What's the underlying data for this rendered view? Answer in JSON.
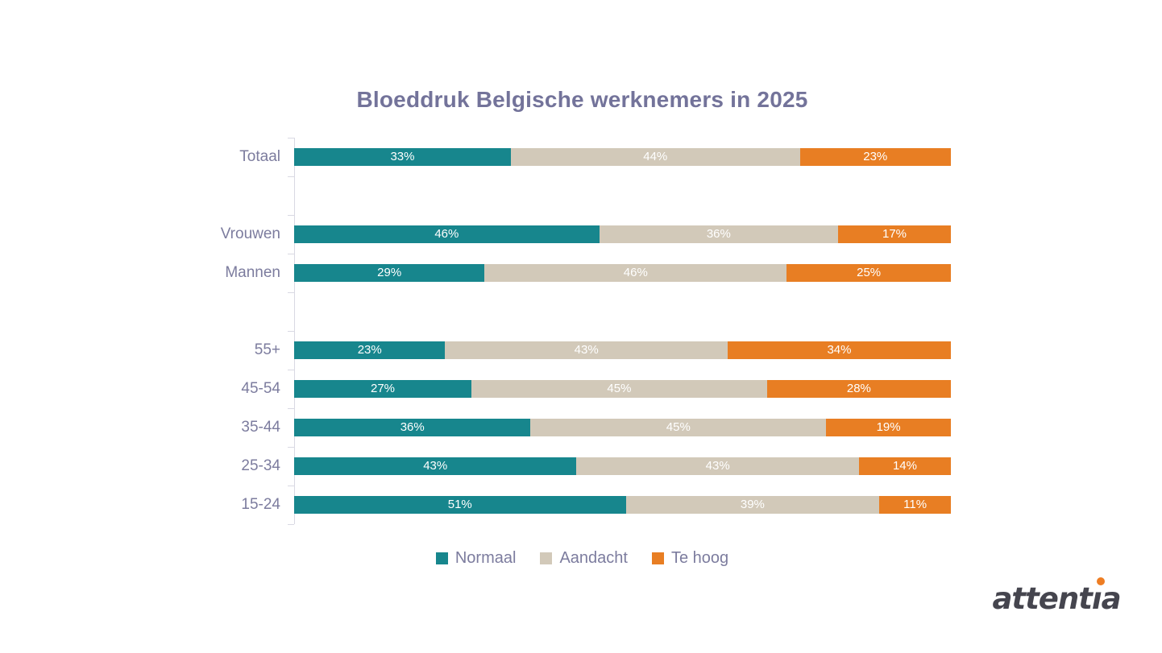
{
  "title": "Bloeddruk Belgische werknemers in 2025",
  "chart_data": {
    "type": "bar",
    "orientation": "horizontal",
    "stacked": true,
    "percent_stacked": true,
    "title": "Bloeddruk Belgische werknemers in 2025",
    "categories": [
      "Totaal",
      "Vrouwen",
      "Mannen",
      "55+",
      "45-54",
      "35-44",
      "25-34",
      "15-24"
    ],
    "groups": [
      [
        "Totaal"
      ],
      [
        "Vrouwen",
        "Mannen"
      ],
      [
        "55+",
        "45-54",
        "35-44",
        "25-34",
        "15-24"
      ]
    ],
    "series": [
      {
        "name": "Normaal",
        "color": "#17868D",
        "values": [
          33,
          46,
          29,
          23,
          27,
          36,
          43,
          51
        ]
      },
      {
        "name": "Aandacht",
        "color": "#D2C9B9",
        "values": [
          44,
          36,
          46,
          43,
          45,
          45,
          43,
          39
        ]
      },
      {
        "name": "Te hoog",
        "color": "#E87E23",
        "values": [
          23,
          17,
          25,
          34,
          28,
          19,
          14,
          11
        ]
      }
    ],
    "value_suffix": "%",
    "xlim": [
      0,
      100
    ],
    "grid": false,
    "legend_position": "bottom",
    "legend": [
      "Normaal",
      "Aandacht",
      "Te hoog"
    ]
  },
  "branding": {
    "logo_text": "attentia",
    "logo_color": "#45454E",
    "logo_dot_color": "#EE7D23"
  },
  "style": {
    "title_color": "#73739A",
    "text_color": "#7C7C9E",
    "axis_color": "#D9D9E3",
    "bar_label_color": "#FFFFFF"
  }
}
